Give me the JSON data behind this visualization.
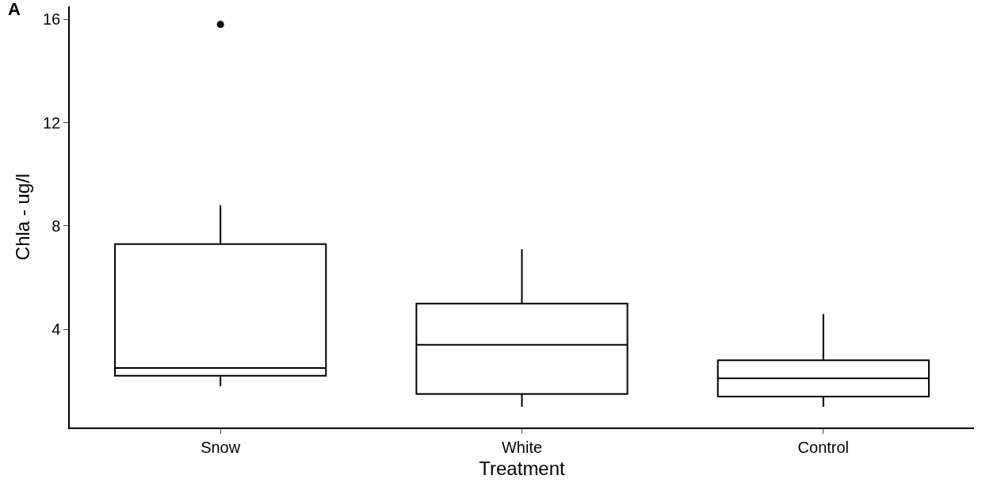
{
  "chart_data": {
    "type": "box",
    "xlabel": "Treatment",
    "ylabel": "Chla - ug/l",
    "annotations": [
      "A"
    ],
    "categories": [
      "Snow",
      "White",
      "Control"
    ],
    "boxes": [
      {
        "low": 1.8,
        "q1": 2.2,
        "median": 2.5,
        "q3": 7.3,
        "high": 8.8,
        "outliers": [
          15.8
        ]
      },
      {
        "low": 1.0,
        "q1": 1.5,
        "median": 3.4,
        "q3": 5.0,
        "high": 7.1
      },
      {
        "low": 1.0,
        "q1": 1.4,
        "median": 2.1,
        "q3": 2.8,
        "high": 4.6
      }
    ],
    "color": "#000000",
    "ylim": [
      0.2,
      16.5
    ],
    "yticks": [
      4,
      8,
      12,
      16
    ],
    "grid": false,
    "marker": "circle"
  }
}
